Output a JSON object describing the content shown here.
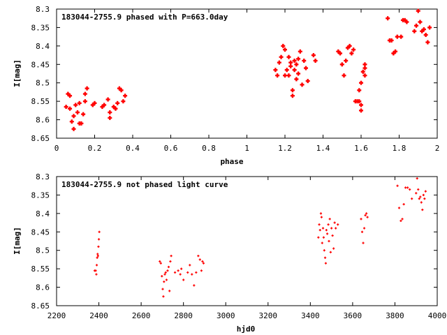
{
  "chart_data": [
    {
      "type": "scatter",
      "title": "183044-2755.9 phased with P=663.0day",
      "xlabel": "phase",
      "ylabel": "I[mag]",
      "xlim": [
        0,
        2
      ],
      "ylim": [
        8.65,
        8.3
      ],
      "y_inverted": true,
      "xticks": [
        "0",
        "0.2",
        "0.4",
        "0.6",
        "0.8",
        "1",
        "1.2",
        "1.4",
        "1.6",
        "1.8",
        "2"
      ],
      "yticks": [
        "8.3",
        "8.35",
        "8.4",
        "8.45",
        "8.5",
        "8.55",
        "8.6",
        "8.65"
      ],
      "marker": "plus-thick",
      "color": "#ff0000",
      "series": [
        {
          "x": [
            0.05,
            0.06,
            0.07,
            0.07,
            0.08,
            0.09,
            0.09,
            0.1,
            0.11,
            0.12,
            0.12,
            0.13,
            0.14,
            0.15,
            0.15,
            0.16,
            0.19,
            0.2,
            0.24,
            0.25,
            0.27,
            0.28,
            0.28,
            0.3,
            0.31,
            0.32,
            0.33,
            0.34,
            0.35,
            0.36,
            1.15,
            1.16,
            1.17,
            1.18,
            1.19,
            1.2,
            1.2,
            1.21,
            1.22,
            1.22,
            1.23,
            1.23,
            1.24,
            1.24,
            1.25,
            1.25,
            1.26,
            1.26,
            1.27,
            1.27,
            1.28,
            1.29,
            1.3,
            1.31,
            1.32,
            1.35,
            1.36,
            1.48,
            1.49,
            1.5,
            1.51,
            1.52,
            1.53,
            1.54,
            1.55,
            1.56,
            1.57,
            1.58,
            1.59,
            1.59,
            1.6,
            1.6,
            1.6,
            1.61,
            1.62,
            1.62,
            1.62,
            1.74,
            1.75,
            1.76,
            1.77,
            1.78,
            1.79,
            1.81,
            1.82,
            1.83,
            1.84,
            1.88,
            1.89,
            1.9,
            1.91,
            1.92,
            1.93,
            1.94,
            1.95,
            1.96
          ],
          "y": [
            8.565,
            8.53,
            8.535,
            8.57,
            8.605,
            8.625,
            8.59,
            8.56,
            8.58,
            8.555,
            8.61,
            8.61,
            8.585,
            8.53,
            8.55,
            8.515,
            8.56,
            8.555,
            8.565,
            8.56,
            8.545,
            8.58,
            8.595,
            8.565,
            8.57,
            8.555,
            8.515,
            8.52,
            8.55,
            8.535,
            8.465,
            8.48,
            8.445,
            8.43,
            8.4,
            8.41,
            8.48,
            8.465,
            8.43,
            8.48,
            8.445,
            8.455,
            8.52,
            8.535,
            8.44,
            8.465,
            8.45,
            8.49,
            8.435,
            8.475,
            8.415,
            8.505,
            8.44,
            8.46,
            8.495,
            8.425,
            8.44,
            8.415,
            8.42,
            8.45,
            8.48,
            8.44,
            8.405,
            8.4,
            8.42,
            8.41,
            8.55,
            8.55,
            8.52,
            8.55,
            8.56,
            8.575,
            8.5,
            8.47,
            8.46,
            8.48,
            8.45,
            8.325,
            8.385,
            8.385,
            8.42,
            8.415,
            8.375,
            8.375,
            8.33,
            8.33,
            8.335,
            8.36,
            8.345,
            8.305,
            8.335,
            8.36,
            8.355,
            8.37,
            8.39,
            8.35
          ]
        }
      ]
    },
    {
      "type": "scatter",
      "title": "183044-2755.9 not phased light curve",
      "xlabel": "hjd0",
      "ylabel": "I[mag]",
      "xlim": [
        2200,
        4000
      ],
      "ylim": [
        8.65,
        8.3
      ],
      "y_inverted": true,
      "xticks": [
        "2200",
        "2400",
        "2600",
        "2800",
        "3000",
        "3200",
        "3400",
        "3600",
        "3800",
        "4000"
      ],
      "yticks": [
        "8.3",
        "8.35",
        "8.4",
        "8.45",
        "8.5",
        "8.55",
        "8.6",
        "8.65"
      ],
      "marker": "plus-small",
      "color": "#ff0000",
      "series": [
        {
          "x": [
            2380,
            2385,
            2388,
            2390,
            2392,
            2394,
            2396,
            2398,
            2400,
            2402,
            2688,
            2693,
            2698,
            2702,
            2705,
            2708,
            2712,
            2716,
            2720,
            2725,
            2730,
            2734,
            2738,
            2742,
            2760,
            2775,
            2785,
            2790,
            2800,
            2820,
            2830,
            2840,
            2850,
            2860,
            2870,
            2878,
            2885,
            2890,
            2895,
            3438,
            3442,
            3446,
            3450,
            3453,
            3456,
            3460,
            3463,
            3466,
            3470,
            3473,
            3476,
            3480,
            3485,
            3488,
            3492,
            3496,
            3500,
            3505,
            3510,
            3515,
            3520,
            3530,
            3640,
            3645,
            3650,
            3655,
            3660,
            3665,
            3670,
            3812,
            3820,
            3828,
            3835,
            3842,
            3850,
            3860,
            3870,
            3880,
            3900,
            3905,
            3910,
            3915,
            3920,
            3925,
            3930,
            3935,
            3940,
            3945
          ],
          "y": [
            8.555,
            8.555,
            8.565,
            8.54,
            8.52,
            8.51,
            8.515,
            8.49,
            8.47,
            8.45,
            8.53,
            8.535,
            8.57,
            8.605,
            8.625,
            8.585,
            8.565,
            8.56,
            8.58,
            8.555,
            8.545,
            8.61,
            8.53,
            8.515,
            8.56,
            8.555,
            8.565,
            8.55,
            8.58,
            8.56,
            8.54,
            8.565,
            8.595,
            8.56,
            8.515,
            8.525,
            8.555,
            8.53,
            8.535,
            8.465,
            8.43,
            8.445,
            8.4,
            8.41,
            8.48,
            8.44,
            8.465,
            8.5,
            8.52,
            8.535,
            8.445,
            8.455,
            8.43,
            8.475,
            8.415,
            8.505,
            8.44,
            8.46,
            8.495,
            8.425,
            8.44,
            8.43,
            8.415,
            8.45,
            8.48,
            8.44,
            8.405,
            8.4,
            8.41,
            8.325,
            8.385,
            8.42,
            8.415,
            8.375,
            8.33,
            8.33,
            8.335,
            8.36,
            8.345,
            8.305,
            8.335,
            8.36,
            8.355,
            8.37,
            8.39,
            8.35,
            8.36,
            8.34
          ]
        }
      ]
    }
  ]
}
